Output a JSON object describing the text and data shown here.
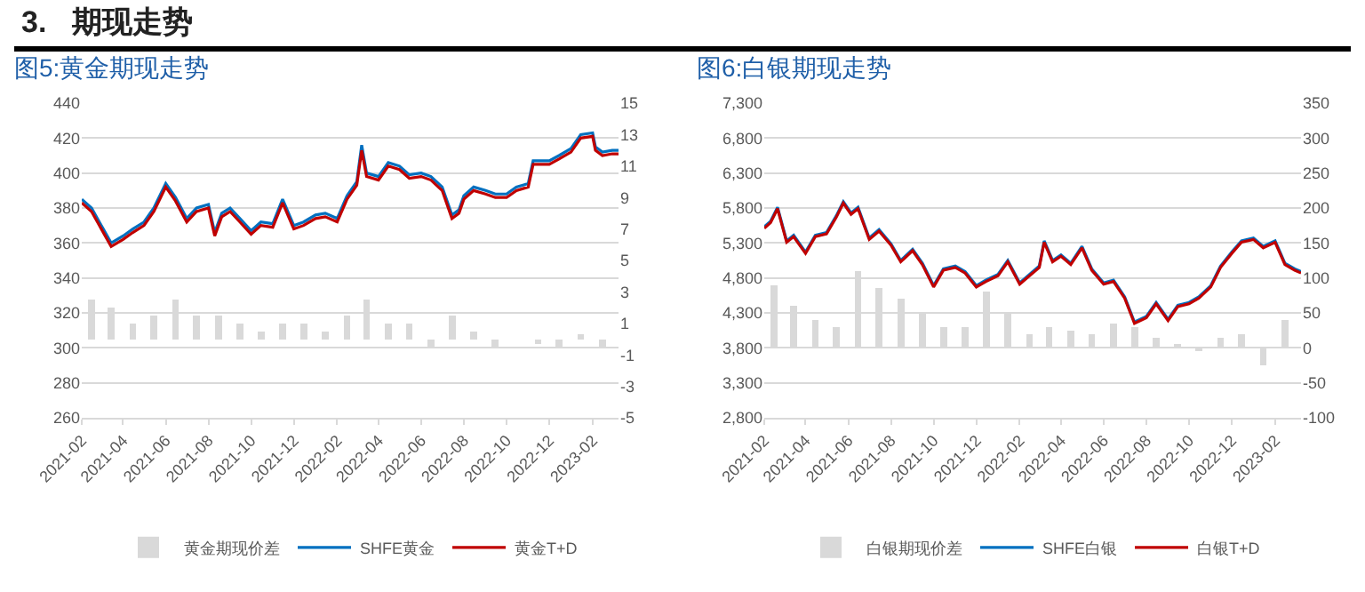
{
  "chart_data": [
    {
      "type": "line",
      "title": "图5:黄金期现走势",
      "annotations": [
        "3.   期现走势"
      ],
      "xlim": [
        "2021-02-01",
        "2023-03-10"
      ],
      "xticks": [
        {
          "value": "2021-02-01",
          "label": "2021-02"
        },
        {
          "value": "2021-04-01",
          "label": "2021-04"
        },
        {
          "value": "2021-06-01",
          "label": "2021-06"
        },
        {
          "value": "2021-08-01",
          "label": "2021-08"
        },
        {
          "value": "2021-10-01",
          "label": "2021-10"
        },
        {
          "value": "2021-12-01",
          "label": "2021-12"
        },
        {
          "value": "2022-02-01",
          "label": "2022-02"
        },
        {
          "value": "2022-04-01",
          "label": "2022-04"
        },
        {
          "value": "2022-06-01",
          "label": "2022-06"
        },
        {
          "value": "2022-08-01",
          "label": "2022-08"
        },
        {
          "value": "2022-10-01",
          "label": "2022-10"
        },
        {
          "value": "2022-12-01",
          "label": "2022-12"
        },
        {
          "value": "2023-02-01",
          "label": "2023-02"
        }
      ],
      "ylim": [
        260,
        440
      ],
      "yticks": [
        260,
        280,
        300,
        320,
        340,
        360,
        380,
        400,
        420,
        440
      ],
      "y2lim": [
        -5,
        15
      ],
      "y2ticks": [
        -5,
        -3,
        -1,
        1,
        3,
        5,
        7,
        9,
        11,
        13,
        15
      ],
      "grid": "y",
      "legend": "bottom",
      "series": [
        {
          "name": "黄金期现价差",
          "type": "bar",
          "axis": "y2",
          "color": "#d9d9d9",
          "x": [
            "2021-02-15",
            "2021-03-15",
            "2021-04-15",
            "2021-05-15",
            "2021-06-15",
            "2021-07-15",
            "2021-08-15",
            "2021-09-15",
            "2021-10-15",
            "2021-11-15",
            "2021-12-15",
            "2022-01-15",
            "2022-02-15",
            "2022-03-15",
            "2022-04-15",
            "2022-05-15",
            "2022-06-15",
            "2022-07-15",
            "2022-08-15",
            "2022-09-15",
            "2022-10-15",
            "2022-11-15",
            "2022-12-15",
            "2023-01-15",
            "2023-02-15"
          ],
          "values": [
            2.5,
            2,
            1,
            1.5,
            2.5,
            1.5,
            1.5,
            1,
            0.5,
            1,
            1,
            0.5,
            1.5,
            2.5,
            1,
            1,
            -0.5,
            1.5,
            0.5,
            -0.5,
            0,
            -0.3,
            -0.5,
            0.3,
            -0.5
          ]
        },
        {
          "name": "SHFE黄金",
          "color": "#0070c0",
          "x": [
            "2021-02-01",
            "2021-02-15",
            "2021-03-01",
            "2021-03-15",
            "2021-04-01",
            "2021-04-15",
            "2021-05-01",
            "2021-05-15",
            "2021-06-01",
            "2021-06-15",
            "2021-07-01",
            "2021-07-15",
            "2021-08-01",
            "2021-08-10",
            "2021-08-20",
            "2021-09-01",
            "2021-09-15",
            "2021-10-01",
            "2021-10-15",
            "2021-11-01",
            "2021-11-15",
            "2021-12-01",
            "2021-12-15",
            "2022-01-01",
            "2022-01-15",
            "2022-02-01",
            "2022-02-15",
            "2022-03-01",
            "2022-03-08",
            "2022-03-15",
            "2022-04-01",
            "2022-04-15",
            "2022-05-01",
            "2022-05-15",
            "2022-06-01",
            "2022-06-15",
            "2022-07-01",
            "2022-07-15",
            "2022-07-25",
            "2022-08-01",
            "2022-08-15",
            "2022-09-01",
            "2022-09-15",
            "2022-10-01",
            "2022-10-15",
            "2022-11-01",
            "2022-11-08",
            "2022-11-15",
            "2022-12-01",
            "2022-12-15",
            "2023-01-01",
            "2023-01-15",
            "2023-02-01",
            "2023-02-05",
            "2023-02-15",
            "2023-03-01",
            "2023-03-10"
          ],
          "values": [
            385,
            380,
            370,
            360,
            364,
            368,
            372,
            380,
            394,
            386,
            374,
            380,
            382,
            366,
            377,
            380,
            374,
            367,
            372,
            371,
            385,
            370,
            372,
            376,
            377,
            374,
            387,
            395,
            416,
            400,
            398,
            406,
            404,
            399,
            400,
            398,
            392,
            376,
            379,
            387,
            392,
            390,
            388,
            388,
            392,
            394,
            407,
            407,
            407,
            410,
            414,
            422,
            423,
            415,
            412,
            413,
            413
          ]
        },
        {
          "name": "黄金T+D",
          "color": "#c00000",
          "x": [
            "2021-02-01",
            "2021-02-15",
            "2021-03-01",
            "2021-03-15",
            "2021-04-01",
            "2021-04-15",
            "2021-05-01",
            "2021-05-15",
            "2021-06-01",
            "2021-06-15",
            "2021-07-01",
            "2021-07-15",
            "2021-08-01",
            "2021-08-10",
            "2021-08-20",
            "2021-09-01",
            "2021-09-15",
            "2021-10-01",
            "2021-10-15",
            "2021-11-01",
            "2021-11-15",
            "2021-12-01",
            "2021-12-15",
            "2022-01-01",
            "2022-01-15",
            "2022-02-01",
            "2022-02-15",
            "2022-03-01",
            "2022-03-08",
            "2022-03-15",
            "2022-04-01",
            "2022-04-15",
            "2022-05-01",
            "2022-05-15",
            "2022-06-01",
            "2022-06-15",
            "2022-07-01",
            "2022-07-15",
            "2022-07-25",
            "2022-08-01",
            "2022-08-15",
            "2022-09-01",
            "2022-09-15",
            "2022-10-01",
            "2022-10-15",
            "2022-11-01",
            "2022-11-08",
            "2022-11-15",
            "2022-12-01",
            "2022-12-15",
            "2023-01-01",
            "2023-01-15",
            "2023-02-01",
            "2023-02-05",
            "2023-02-15",
            "2023-03-01",
            "2023-03-10"
          ],
          "values": [
            383,
            378,
            368,
            358,
            362,
            366,
            370,
            378,
            392,
            384,
            372,
            378,
            380,
            364,
            375,
            378,
            372,
            365,
            370,
            369,
            383,
            368,
            370,
            374,
            375,
            372,
            385,
            393,
            413,
            398,
            396,
            404,
            402,
            397,
            398,
            396,
            390,
            374,
            377,
            385,
            390,
            388,
            386,
            386,
            390,
            392,
            405,
            405,
            405,
            408,
            412,
            420,
            421,
            413,
            410,
            411,
            411
          ]
        }
      ]
    },
    {
      "type": "line",
      "title": "图6:白银期现走势",
      "xlim": [
        "2021-02-01",
        "2023-03-10"
      ],
      "xticks": [
        {
          "value": "2021-02-01",
          "label": "2021-02"
        },
        {
          "value": "2021-04-01",
          "label": "2021-04"
        },
        {
          "value": "2021-06-01",
          "label": "2021-06"
        },
        {
          "value": "2021-08-01",
          "label": "2021-08"
        },
        {
          "value": "2021-10-01",
          "label": "2021-10"
        },
        {
          "value": "2021-12-01",
          "label": "2021-12"
        },
        {
          "value": "2022-02-01",
          "label": "2022-02"
        },
        {
          "value": "2022-04-01",
          "label": "2022-04"
        },
        {
          "value": "2022-06-01",
          "label": "2022-06"
        },
        {
          "value": "2022-08-01",
          "label": "2022-08"
        },
        {
          "value": "2022-10-01",
          "label": "2022-10"
        },
        {
          "value": "2022-12-01",
          "label": "2022-12"
        },
        {
          "value": "2023-02-01",
          "label": "2023-02"
        }
      ],
      "ylim": [
        2800,
        7300
      ],
      "yticks": [
        {
          "value": 2800,
          "label": "2,800"
        },
        {
          "value": 3300,
          "label": "3,300"
        },
        {
          "value": 3800,
          "label": "3,800"
        },
        {
          "value": 4300,
          "label": "4,300"
        },
        {
          "value": 4800,
          "label": "4,800"
        },
        {
          "value": 5300,
          "label": "5,300"
        },
        {
          "value": 5800,
          "label": "5,800"
        },
        {
          "value": 6300,
          "label": "6,300"
        },
        {
          "value": 6800,
          "label": "6,800"
        },
        {
          "value": 7300,
          "label": "7,300"
        }
      ],
      "y2lim": [
        -100,
        350
      ],
      "y2ticks": [
        -100,
        -50,
        0,
        50,
        100,
        150,
        200,
        250,
        300,
        350
      ],
      "grid": "y",
      "legend": "bottom",
      "series": [
        {
          "name": "白银期现价差",
          "type": "bar",
          "axis": "y2",
          "color": "#d9d9d9",
          "x": [
            "2021-02-15",
            "2021-03-15",
            "2021-04-15",
            "2021-05-15",
            "2021-06-15",
            "2021-07-15",
            "2021-08-15",
            "2021-09-15",
            "2021-10-15",
            "2021-11-15",
            "2021-12-15",
            "2022-01-15",
            "2022-02-15",
            "2022-03-15",
            "2022-04-15",
            "2022-05-15",
            "2022-06-15",
            "2022-07-15",
            "2022-08-15",
            "2022-09-15",
            "2022-10-15",
            "2022-11-15",
            "2022-12-15",
            "2023-01-15",
            "2023-02-15"
          ],
          "values": [
            90,
            60,
            40,
            30,
            110,
            85,
            70,
            50,
            30,
            30,
            80,
            50,
            20,
            30,
            25,
            20,
            35,
            30,
            15,
            5,
            -5,
            15,
            20,
            -25,
            40
          ]
        },
        {
          "name": "SHFE白银",
          "color": "#0070c0",
          "x": [
            "2021-02-01",
            "2021-02-10",
            "2021-02-20",
            "2021-03-05",
            "2021-03-15",
            "2021-04-01",
            "2021-04-15",
            "2021-05-01",
            "2021-05-15",
            "2021-05-25",
            "2021-06-05",
            "2021-06-15",
            "2021-07-01",
            "2021-07-15",
            "2021-08-01",
            "2021-08-15",
            "2021-09-01",
            "2021-09-15",
            "2021-10-01",
            "2021-10-15",
            "2021-11-01",
            "2021-11-15",
            "2021-12-01",
            "2021-12-15",
            "2022-01-01",
            "2022-01-15",
            "2022-02-01",
            "2022-02-15",
            "2022-03-01",
            "2022-03-08",
            "2022-03-20",
            "2022-04-01",
            "2022-04-15",
            "2022-05-01",
            "2022-05-15",
            "2022-06-01",
            "2022-06-15",
            "2022-07-01",
            "2022-07-15",
            "2022-08-01",
            "2022-08-15",
            "2022-09-01",
            "2022-09-15",
            "2022-10-01",
            "2022-10-15",
            "2022-11-01",
            "2022-11-15",
            "2022-12-01",
            "2022-12-15",
            "2023-01-01",
            "2023-01-15",
            "2023-02-01",
            "2023-02-15",
            "2023-03-01",
            "2023-03-10"
          ],
          "values": [
            5530,
            5610,
            5810,
            5330,
            5410,
            5170,
            5410,
            5450,
            5690,
            5890,
            5730,
            5810,
            5370,
            5490,
            5290,
            5050,
            5210,
            5010,
            4690,
            4930,
            4970,
            4890,
            4690,
            4770,
            4850,
            5050,
            4730,
            4850,
            4970,
            5330,
            5050,
            5130,
            5010,
            5250,
            4930,
            4730,
            4770,
            4530,
            4170,
            4250,
            4450,
            4210,
            4410,
            4450,
            4530,
            4690,
            4970,
            5170,
            5330,
            5370,
            5250,
            5330,
            5010,
            4930,
            4890
          ]
        },
        {
          "name": "白银T+D",
          "color": "#c00000",
          "x": [
            "2021-02-01",
            "2021-02-10",
            "2021-02-20",
            "2021-03-05",
            "2021-03-15",
            "2021-04-01",
            "2021-04-15",
            "2021-05-01",
            "2021-05-15",
            "2021-05-25",
            "2021-06-05",
            "2021-06-15",
            "2021-07-01",
            "2021-07-15",
            "2021-08-01",
            "2021-08-15",
            "2021-09-01",
            "2021-09-15",
            "2021-10-01",
            "2021-10-15",
            "2021-11-01",
            "2021-11-15",
            "2021-12-01",
            "2021-12-15",
            "2022-01-01",
            "2022-01-15",
            "2022-02-01",
            "2022-02-15",
            "2022-03-01",
            "2022-03-08",
            "2022-03-20",
            "2022-04-01",
            "2022-04-15",
            "2022-05-01",
            "2022-05-15",
            "2022-06-01",
            "2022-06-15",
            "2022-07-01",
            "2022-07-15",
            "2022-08-01",
            "2022-08-15",
            "2022-09-01",
            "2022-09-15",
            "2022-10-01",
            "2022-10-15",
            "2022-11-01",
            "2022-11-15",
            "2022-12-01",
            "2022-12-15",
            "2023-01-01",
            "2023-01-15",
            "2023-02-01",
            "2023-02-15",
            "2023-03-01",
            "2023-03-10"
          ],
          "values": [
            5510,
            5590,
            5790,
            5310,
            5390,
            5150,
            5390,
            5430,
            5670,
            5870,
            5710,
            5790,
            5350,
            5470,
            5270,
            5030,
            5190,
            4990,
            4670,
            4910,
            4950,
            4870,
            4670,
            4750,
            4830,
            5030,
            4710,
            4830,
            4950,
            5310,
            5030,
            5110,
            4990,
            5230,
            4910,
            4710,
            4750,
            4510,
            4150,
            4230,
            4430,
            4190,
            4390,
            4430,
            4510,
            4670,
            4950,
            5150,
            5310,
            5350,
            5230,
            5310,
            4990,
            4910,
            4870
          ]
        }
      ]
    }
  ]
}
